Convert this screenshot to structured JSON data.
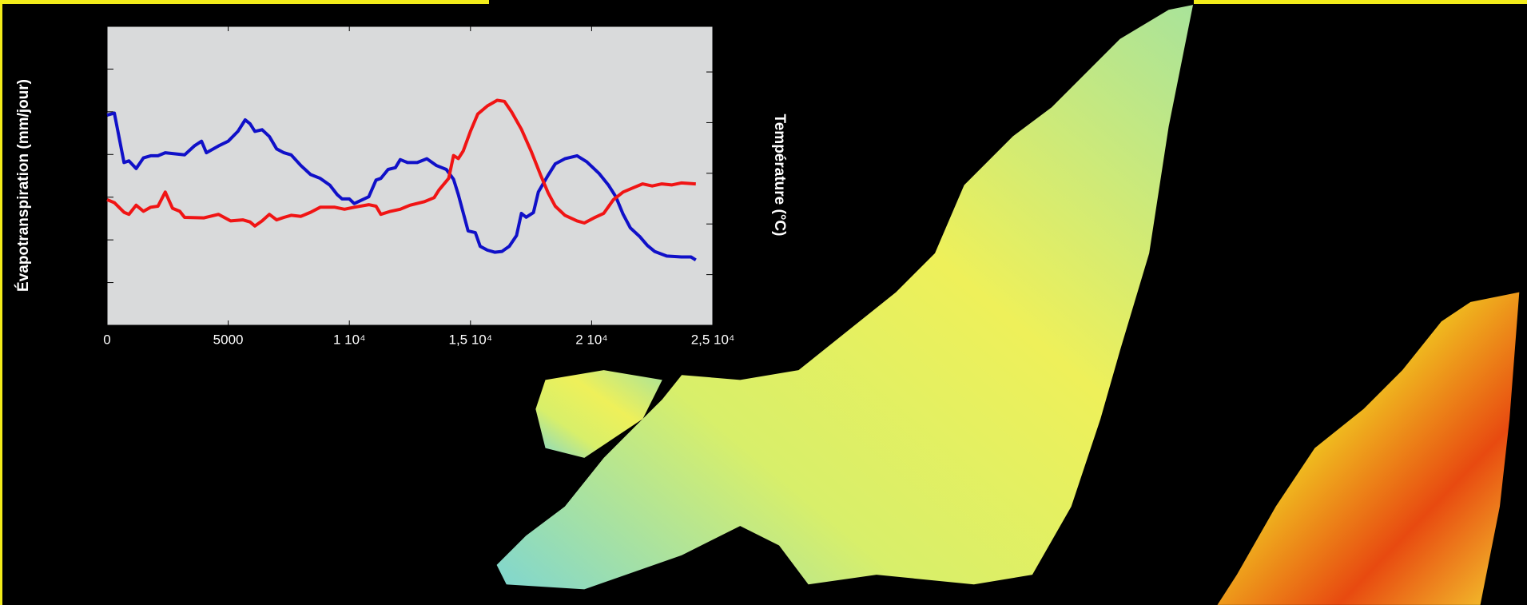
{
  "chart_data": {
    "type": "line",
    "ylabel": "Évapotranspiration (mm/jour)",
    "y2label": "Température (°C)",
    "xlim": [
      0,
      25000
    ],
    "xticks": [
      0,
      5000,
      {
        "value": 10000,
        "label": "1 10⁴"
      },
      {
        "value": 15000,
        "label": "1,5 10⁴"
      },
      {
        "value": 20000,
        "label": "2 10⁴"
      },
      {
        "value": 25000,
        "label": "2,5 10⁴"
      }
    ],
    "ylim": [
      0,
      7
    ],
    "yticks": [
      1,
      2,
      3,
      4,
      5,
      6
    ],
    "y2lim": [
      0,
      5.9
    ],
    "y2ticks": [
      1,
      2,
      3,
      4,
      5
    ],
    "series": [
      {
        "color": "#1010c8",
        "x": [
          0,
          300,
          700,
          900,
          1200,
          1500,
          1800,
          2100,
          2400,
          3200,
          3600,
          3900,
          4100,
          4600,
          5000,
          5400,
          5700,
          5900,
          6100,
          6400,
          6700,
          7000,
          7300,
          7600,
          8000,
          8400,
          8800,
          9200,
          9500,
          9700,
          10000,
          10200,
          10800,
          11100,
          11300,
          11600,
          11900,
          12100,
          12400,
          12800,
          13200,
          13600,
          14000,
          14300,
          14500,
          14900,
          15200,
          15400,
          15700,
          16000,
          16300,
          16600,
          16900,
          17100,
          17300,
          17600,
          17800,
          18200,
          18500,
          18900,
          19400,
          19800,
          20300,
          20700,
          21000,
          21300,
          21600,
          22000,
          22300,
          22600,
          23100,
          23700,
          24100,
          24300
        ],
        "values": [
          4.92,
          4.97,
          3.81,
          3.85,
          3.67,
          3.92,
          3.97,
          3.97,
          4.04,
          3.99,
          4.2,
          4.31,
          4.04,
          4.2,
          4.31,
          4.54,
          4.81,
          4.72,
          4.54,
          4.58,
          4.42,
          4.13,
          4.04,
          3.99,
          3.74,
          3.53,
          3.44,
          3.28,
          3.06,
          2.96,
          2.96,
          2.85,
          3.01,
          3.4,
          3.44,
          3.65,
          3.69,
          3.88,
          3.81,
          3.81,
          3.9,
          3.74,
          3.65,
          3.42,
          3.06,
          2.21,
          2.17,
          1.85,
          1.76,
          1.71,
          1.73,
          1.85,
          2.1,
          2.62,
          2.53,
          2.64,
          3.12,
          3.51,
          3.78,
          3.9,
          3.97,
          3.83,
          3.56,
          3.28,
          3.01,
          2.6,
          2.28,
          2.07,
          1.87,
          1.73,
          1.62,
          1.6,
          1.6,
          1.53
        ]
      },
      {
        "color": "#f01414",
        "axis": "y2",
        "x": [
          0,
          300,
          700,
          900,
          1200,
          1500,
          1800,
          2100,
          2400,
          2700,
          3000,
          3200,
          4000,
          4600,
          5100,
          5600,
          5900,
          6100,
          6400,
          6700,
          7000,
          7300,
          7600,
          8000,
          8400,
          8800,
          9400,
          9800,
          10200,
          10800,
          11100,
          11300,
          11700,
          12100,
          12500,
          13100,
          13500,
          13700,
          14100,
          14300,
          14500,
          14700,
          15000,
          15300,
          15700,
          16100,
          16400,
          16700,
          17100,
          17500,
          17900,
          18200,
          18500,
          18900,
          19400,
          19700,
          20100,
          20500,
          20900,
          21300,
          21700,
          22100,
          22500,
          22900,
          23300,
          23700,
          24300
        ],
        "values": [
          2.48,
          2.42,
          2.23,
          2.19,
          2.37,
          2.25,
          2.33,
          2.35,
          2.63,
          2.31,
          2.25,
          2.13,
          2.12,
          2.19,
          2.06,
          2.08,
          2.04,
          1.96,
          2.06,
          2.19,
          2.08,
          2.13,
          2.17,
          2.15,
          2.23,
          2.33,
          2.33,
          2.29,
          2.33,
          2.38,
          2.35,
          2.19,
          2.25,
          2.29,
          2.37,
          2.44,
          2.52,
          2.67,
          2.9,
          3.35,
          3.29,
          3.44,
          3.83,
          4.17,
          4.33,
          4.44,
          4.42,
          4.21,
          3.87,
          3.44,
          2.96,
          2.62,
          2.35,
          2.17,
          2.06,
          2.02,
          2.12,
          2.21,
          2.48,
          2.63,
          2.71,
          2.79,
          2.75,
          2.79,
          2.77,
          2.81,
          2.79
        ]
      }
    ]
  }
}
